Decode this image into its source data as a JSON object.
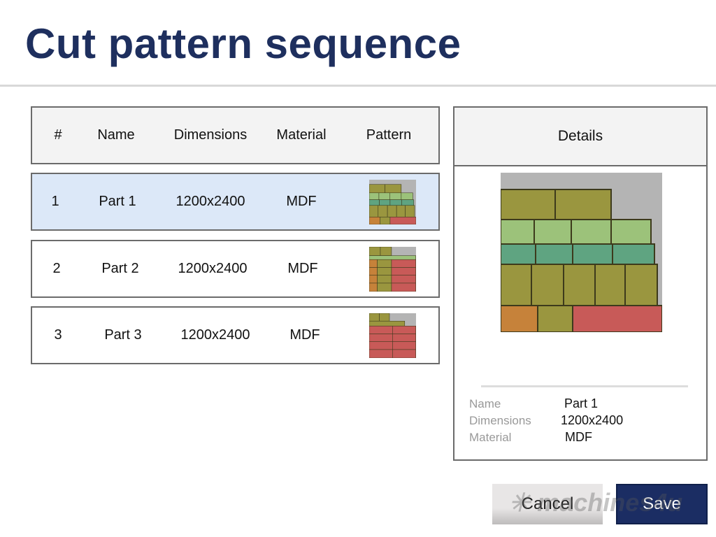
{
  "title": "Cut pattern sequence",
  "table": {
    "headers": [
      "#",
      "Name",
      "Dimensions",
      "Material",
      "Pattern"
    ],
    "rows": [
      {
        "num": "1",
        "name": "Part 1",
        "dimensions": "1200x2400",
        "material": "MDF",
        "selected": true
      },
      {
        "num": "2",
        "name": "Part 2",
        "dimensions": "1200x2400",
        "material": "MDF",
        "selected": false
      },
      {
        "num": "3",
        "name": "Part 3",
        "dimensions": "1200x2400",
        "material": "MDF",
        "selected": false
      }
    ]
  },
  "details": {
    "header": "Details",
    "labels": {
      "name": "Name",
      "dimensions": "Dimensions",
      "material": "Material"
    },
    "values": {
      "name": "Part 1",
      "dimensions": "1200x2400",
      "material": "MDF"
    }
  },
  "buttons": {
    "cancel": "Cancel",
    "save": "Save"
  },
  "watermark": "machines4u .com.au",
  "colors": {
    "title": "#1e2f5e",
    "selected_row": "#dce8f8",
    "save_button": "#1b2d63",
    "olive": "#9a963f",
    "light_green": "#9cc27a",
    "teal": "#5fa481",
    "orange": "#c6823a",
    "red": "#c85a58",
    "sheet": "#b4b4b4"
  }
}
